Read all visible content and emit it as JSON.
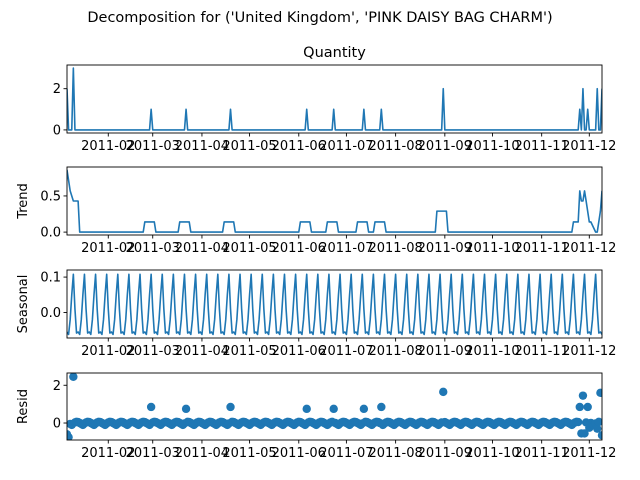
{
  "figure_title": "Decomposition for ('United Kingdom', 'PINK DAISY BAG CHARM')",
  "colors": {
    "line": "#1f77b4",
    "axis": "#000000",
    "background": "#ffffff"
  },
  "chart_data": [
    {
      "type": "line",
      "title": "Quantity",
      "ylabel": "",
      "x_range": [
        "2011-01-06",
        "2011-12-09"
      ],
      "ylim": [
        -0.15,
        3.15
      ],
      "yticks": [
        0,
        2
      ],
      "xtick_labels": [
        "2011-02",
        "2011-03",
        "2011-04",
        "2011-05",
        "2011-06",
        "2011-07",
        "2011-08",
        "2011-09",
        "2011-10",
        "2011-11",
        "2011-12"
      ],
      "series": [
        {
          "x": [
            "2011-01-06",
            "2011-01-07",
            "2011-01-09",
            "2011-01-10",
            "2011-01-11",
            "2011-01-12",
            "2011-02-27",
            "2011-02-28",
            "2011-03-01",
            "2011-03-21",
            "2011-03-22",
            "2011-03-23",
            "2011-04-18",
            "2011-04-19",
            "2011-04-20",
            "2011-06-05",
            "2011-06-06",
            "2011-06-07",
            "2011-06-22",
            "2011-06-23",
            "2011-06-24",
            "2011-07-11",
            "2011-07-12",
            "2011-07-13",
            "2011-07-22",
            "2011-07-23",
            "2011-07-24",
            "2011-08-30",
            "2011-08-31",
            "2011-09-01",
            "2011-11-24",
            "2011-11-25",
            "2011-11-26",
            "2011-11-27",
            "2011-11-28",
            "2011-11-29",
            "2011-11-30",
            "2011-12-01",
            "2011-12-02",
            "2011-12-05",
            "2011-12-06",
            "2011-12-07",
            "2011-12-08",
            "2011-12-09"
          ],
          "values": [
            2,
            0,
            0,
            3,
            0,
            0,
            0,
            1,
            0,
            0,
            1,
            0,
            0,
            1,
            0,
            0,
            1,
            0,
            0,
            1,
            0,
            0,
            1,
            0,
            0,
            1,
            0,
            0,
            2,
            0,
            0,
            1,
            0,
            2,
            0,
            0,
            1,
            0,
            0,
            0,
            2,
            0,
            0,
            2
          ]
        }
      ]
    },
    {
      "type": "line",
      "title": "",
      "ylabel": "Trend",
      "x_range": [
        "2011-01-06",
        "2011-12-09"
      ],
      "ylim": [
        -0.04,
        0.9
      ],
      "yticks": [
        0.0,
        0.5
      ],
      "ytick_labels": [
        "0.0",
        "0.5"
      ],
      "xtick_labels": [
        "2011-02",
        "2011-03",
        "2011-04",
        "2011-05",
        "2011-06",
        "2011-07",
        "2011-08",
        "2011-09",
        "2011-10",
        "2011-11",
        "2011-12"
      ],
      "series": [
        {
          "x": [
            "2011-01-06",
            "2011-01-08",
            "2011-01-10",
            "2011-01-13",
            "2011-01-14",
            "2011-02-23",
            "2011-02-24",
            "2011-03-02",
            "2011-03-03",
            "2011-03-17",
            "2011-03-18",
            "2011-03-24",
            "2011-03-25",
            "2011-04-14",
            "2011-04-15",
            "2011-04-21",
            "2011-04-22",
            "2011-06-01",
            "2011-06-02",
            "2011-06-08",
            "2011-06-09",
            "2011-06-18",
            "2011-06-19",
            "2011-06-25",
            "2011-06-26",
            "2011-07-07",
            "2011-07-08",
            "2011-07-14",
            "2011-07-15",
            "2011-07-18",
            "2011-07-19",
            "2011-07-25",
            "2011-07-26",
            "2011-08-26",
            "2011-08-27",
            "2011-09-02",
            "2011-09-03",
            "2011-11-20",
            "2011-11-21",
            "2011-11-24",
            "2011-11-25",
            "2011-11-26",
            "2011-11-27",
            "2011-11-28",
            "2011-11-29",
            "2011-12-01",
            "2011-12-02",
            "2011-12-05",
            "2011-12-06",
            "2011-12-08",
            "2011-12-09"
          ],
          "values": [
            0.86,
            0.57,
            0.43,
            0.43,
            0,
            0,
            0.14,
            0.14,
            0,
            0,
            0.14,
            0.14,
            0,
            0,
            0.14,
            0.14,
            0,
            0,
            0.14,
            0.14,
            0,
            0,
            0.14,
            0.14,
            0,
            0,
            0.14,
            0.14,
            0,
            0,
            0.14,
            0.14,
            0,
            0,
            0.29,
            0.29,
            0,
            0,
            0.14,
            0.14,
            0.57,
            0.43,
            0.43,
            0.57,
            0.43,
            0.14,
            0.14,
            0,
            0,
            0.29,
            0.57
          ]
        }
      ]
    },
    {
      "type": "line",
      "title": "",
      "ylabel": "Seasonal",
      "x_range": [
        "2011-01-06",
        "2011-12-09"
      ],
      "ylim": [
        -0.072,
        0.12
      ],
      "yticks": [
        0.0,
        0.1
      ],
      "ytick_labels": [
        "0.0",
        "0.1"
      ],
      "xtick_labels": [
        "2011-02",
        "2011-03",
        "2011-04",
        "2011-05",
        "2011-06",
        "2011-07",
        "2011-08",
        "2011-09",
        "2011-10",
        "2011-11",
        "2011-12"
      ],
      "period_days": 7,
      "pattern": [
        -0.055,
        -0.062,
        -0.02,
        0.05,
        0.108,
        0.01,
        -0.058
      ],
      "series": [
        {
          "x": [],
          "values": []
        }
      ]
    },
    {
      "type": "scatter",
      "title": "",
      "ylabel": "Resid",
      "x_range": [
        "2011-01-06",
        "2011-12-09"
      ],
      "ylim": [
        -0.9,
        2.65
      ],
      "yticks": [
        0,
        2
      ],
      "baseline": 0,
      "xtick_labels": [
        "2011-02",
        "2011-03",
        "2011-04",
        "2011-05",
        "2011-06",
        "2011-07",
        "2011-08",
        "2011-09",
        "2011-10",
        "2011-11",
        "2011-12"
      ],
      "special_points": {
        "x": [
          "2011-01-06",
          "2011-01-07",
          "2011-01-10",
          "2011-02-28",
          "2011-03-22",
          "2011-04-19",
          "2011-06-06",
          "2011-06-23",
          "2011-07-12",
          "2011-07-23",
          "2011-08-31",
          "2011-11-25",
          "2011-11-26",
          "2011-11-27",
          "2011-11-28",
          "2011-11-30",
          "2011-12-01",
          "2011-12-06",
          "2011-12-08",
          "2011-12-09"
        ],
        "values": [
          -0.6,
          -0.75,
          2.45,
          0.85,
          0.75,
          0.85,
          0.75,
          0.75,
          0.75,
          0.85,
          1.65,
          0.85,
          -0.55,
          1.45,
          -0.55,
          0.85,
          -0.25,
          -0.3,
          1.6,
          -0.65
        ]
      },
      "series": [
        {
          "x": [],
          "values": []
        }
      ]
    }
  ]
}
